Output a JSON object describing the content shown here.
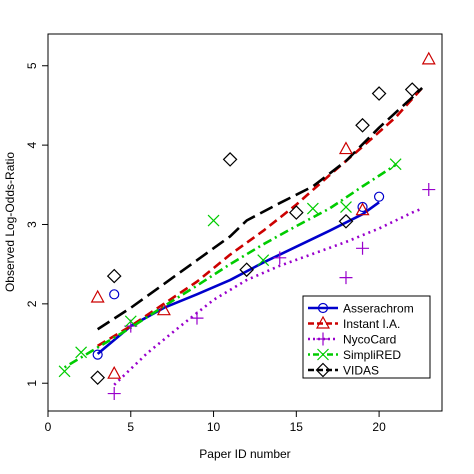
{
  "chart_data": {
    "type": "scatter",
    "title": "",
    "xlabel": "Paper ID number",
    "ylabel": "Observed Log-Odds-Ratio",
    "xlim": [
      0,
      23.8
    ],
    "ylim": [
      0.65,
      5.4
    ],
    "x_ticks": [
      "0",
      "5",
      "10",
      "15",
      "20"
    ],
    "y_ticks": [
      "1",
      "2",
      "3",
      "4",
      "5"
    ],
    "grid": false,
    "legend_position": "bottom-right",
    "series": [
      {
        "name": "Asserachrom",
        "color": "#0000cc",
        "marker": "circle",
        "line_style": "solid",
        "points": [
          [
            3,
            1.36
          ],
          [
            4,
            2.12
          ],
          [
            19,
            3.22
          ],
          [
            20,
            3.35
          ]
        ],
        "trend": [
          [
            3,
            1.37
          ],
          [
            5,
            1.72
          ],
          [
            7,
            1.95
          ],
          [
            9,
            2.12
          ],
          [
            11,
            2.3
          ],
          [
            13,
            2.52
          ],
          [
            15,
            2.72
          ],
          [
            17,
            2.92
          ],
          [
            19,
            3.13
          ],
          [
            20,
            3.28
          ]
        ]
      },
      {
        "name": "Instant I.A.",
        "color": "#cc0000",
        "marker": "triangle",
        "line_style": "dashed",
        "points": [
          [
            3,
            2.08
          ],
          [
            4,
            1.12
          ],
          [
            7,
            1.92
          ],
          [
            18,
            3.95
          ],
          [
            19,
            3.18
          ],
          [
            23,
            5.08
          ]
        ],
        "trend": [
          [
            3,
            1.47
          ],
          [
            5,
            1.72
          ],
          [
            7,
            2.0
          ],
          [
            9,
            2.28
          ],
          [
            11,
            2.62
          ],
          [
            13,
            2.92
          ],
          [
            15,
            3.25
          ],
          [
            17,
            3.62
          ],
          [
            19,
            3.98
          ],
          [
            21,
            4.35
          ],
          [
            22.6,
            4.72
          ]
        ]
      },
      {
        "name": "NycoCard",
        "color": "#9900cc",
        "marker": "plus",
        "line_style": "dotted",
        "points": [
          [
            4,
            0.87
          ],
          [
            5,
            1.72
          ],
          [
            9,
            1.82
          ],
          [
            14,
            2.58
          ],
          [
            18,
            2.33
          ],
          [
            19,
            2.7
          ],
          [
            23,
            3.44
          ]
        ],
        "trend": [
          [
            4,
            0.98
          ],
          [
            6,
            1.38
          ],
          [
            8,
            1.72
          ],
          [
            10,
            2.05
          ],
          [
            12,
            2.3
          ],
          [
            14,
            2.48
          ],
          [
            16,
            2.63
          ],
          [
            18,
            2.78
          ],
          [
            20,
            2.95
          ],
          [
            22,
            3.15
          ],
          [
            22.6,
            3.2
          ]
        ]
      },
      {
        "name": "SimpliRED",
        "color": "#00cc00",
        "marker": "x",
        "line_style": "dotdash",
        "points": [
          [
            1,
            1.15
          ],
          [
            2,
            1.39
          ],
          [
            5,
            1.78
          ],
          [
            10,
            3.05
          ],
          [
            13,
            2.55
          ],
          [
            16,
            3.2
          ],
          [
            18,
            3.22
          ],
          [
            21,
            3.76
          ]
        ],
        "trend": [
          [
            1,
            1.2
          ],
          [
            3,
            1.45
          ],
          [
            5,
            1.7
          ],
          [
            7,
            1.97
          ],
          [
            9,
            2.23
          ],
          [
            11,
            2.5
          ],
          [
            13,
            2.75
          ],
          [
            15,
            2.98
          ],
          [
            17,
            3.2
          ],
          [
            19,
            3.48
          ],
          [
            21,
            3.75
          ]
        ]
      },
      {
        "name": "VIDAS",
        "color": "#000000",
        "marker": "diamond",
        "line_style": "longdash",
        "points": [
          [
            3,
            1.07
          ],
          [
            4,
            2.35
          ],
          [
            11,
            3.82
          ],
          [
            12,
            2.43
          ],
          [
            15,
            3.15
          ],
          [
            18,
            3.04
          ],
          [
            19,
            4.25
          ],
          [
            20,
            4.65
          ],
          [
            22,
            4.7
          ]
        ],
        "trend": [
          [
            3,
            1.68
          ],
          [
            5,
            1.95
          ],
          [
            7,
            2.25
          ],
          [
            9,
            2.55
          ],
          [
            11,
            2.85
          ],
          [
            12,
            3.05
          ],
          [
            14,
            3.27
          ],
          [
            16,
            3.48
          ],
          [
            18,
            3.8
          ],
          [
            20,
            4.22
          ],
          [
            22,
            4.6
          ],
          [
            22.6,
            4.72
          ]
        ]
      }
    ]
  }
}
